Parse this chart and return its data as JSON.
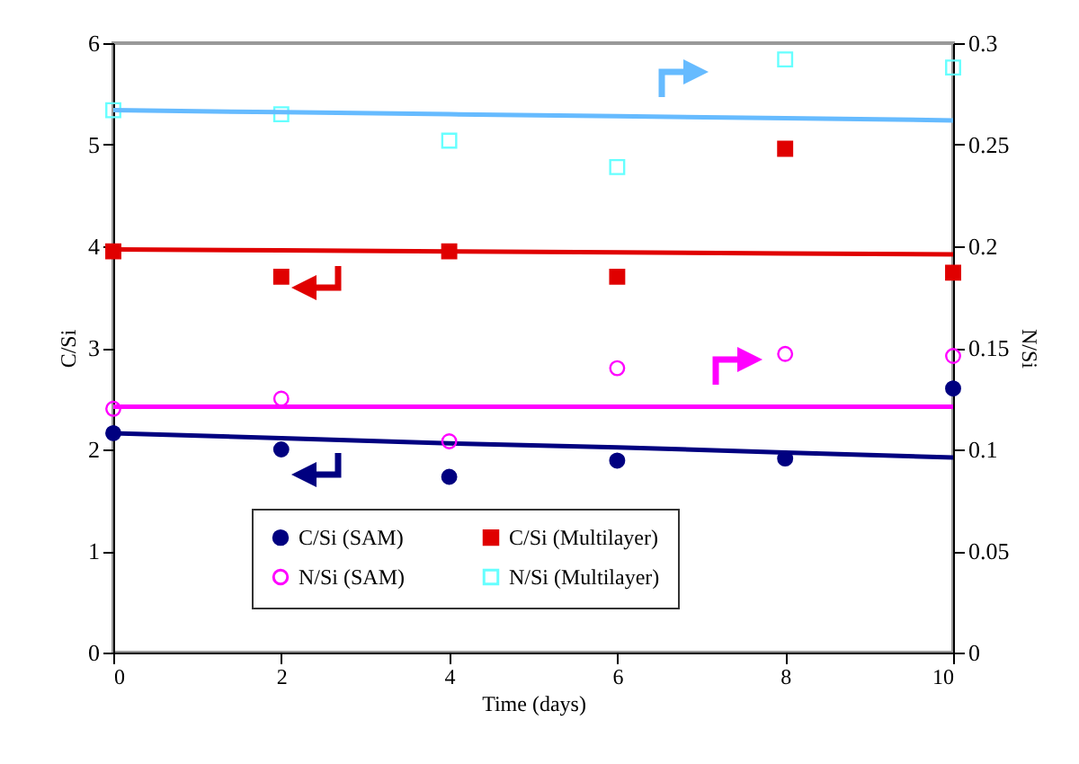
{
  "chart_data": {
    "type": "scatter",
    "xlabel": "Time (days)",
    "ylabel": "C/Si",
    "y2label": "N/Si",
    "x": [
      0,
      2,
      4,
      6,
      8,
      10
    ],
    "series": [
      {
        "name": "C/Si (SAM)",
        "color": "#000080",
        "marker": "circle",
        "values": [
          2.16,
          2.0,
          1.73,
          1.89,
          1.91,
          2.6
        ]
      },
      {
        "name": "C/Si (Multilayer)",
        "color": "#e00000",
        "marker": "square",
        "values": [
          3.95,
          3.7,
          3.95,
          3.7,
          4.96,
          3.74
        ]
      },
      {
        "name": "N/Si (SAM)",
        "color": "#ff00ff",
        "marker": "circle",
        "axis": "y2",
        "values": [
          0.12,
          0.125,
          0.104,
          0.14,
          0.147,
          0.146
        ]
      },
      {
        "name": "N/Si (Multilayer)",
        "color": "#66ffff",
        "marker": "square",
        "axis": "y2",
        "values": [
          0.267,
          0.265,
          0.252,
          0.239,
          0.292,
          0.288
        ]
      },
      {
        "type": "line",
        "color": "#000080",
        "values": [
          2.16,
          2.11,
          2.06,
          2.02,
          1.97,
          1.92
        ]
      },
      {
        "type": "line",
        "color": "#e00000",
        "values": [
          3.97,
          3.96,
          3.95,
          3.94,
          3.93,
          3.92
        ]
      },
      {
        "type": "line",
        "color": "#ff00ff",
        "axis": "y2",
        "values": [
          0.121,
          0.121,
          0.121,
          0.121,
          0.121,
          0.121
        ]
      },
      {
        "type": "line",
        "color": "#66bbff",
        "axis": "y2",
        "values": [
          0.267,
          0.266,
          0.265,
          0.264,
          0.263,
          0.262
        ]
      }
    ],
    "xlim": [
      0,
      10
    ],
    "xticks": [
      0,
      2,
      4,
      6,
      8,
      10
    ],
    "ylim": [
      0,
      6
    ],
    "yticks": [
      0,
      1,
      2,
      3,
      4,
      5,
      6
    ],
    "y2lim": [
      0,
      0.3
    ],
    "y2ticks": [
      0,
      0.05,
      0.1,
      0.15,
      0.2,
      0.25,
      0.3
    ],
    "legend": "bottom",
    "grid": false
  }
}
